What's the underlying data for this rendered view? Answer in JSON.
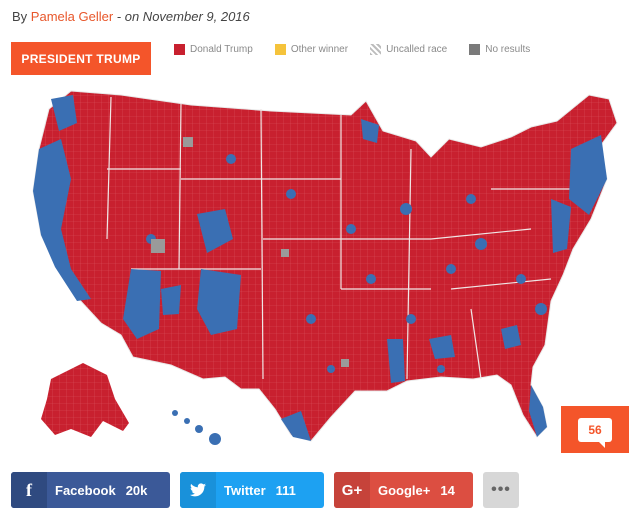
{
  "byline": {
    "prefix": "By ",
    "author": "Pamela Geller",
    "separator": " - ",
    "date": "on November 9, 2016"
  },
  "map": {
    "tag": "PRESIDENT TRUMP",
    "legend": [
      {
        "label": "Donald Trump",
        "color": "#c8202f"
      },
      {
        "label": "Other winner",
        "color": "#f5c33b"
      },
      {
        "label": "Uncalled race",
        "color": "#bdbdbd"
      },
      {
        "label": "No results",
        "color": "#7a7a7a"
      }
    ],
    "colors": {
      "trump": "#c8202f",
      "clinton": "#3a6fb3",
      "none": "#9a9a9a"
    }
  },
  "comments": {
    "count": "56"
  },
  "share": {
    "facebook": {
      "icon": "facebook-icon",
      "label": "Facebook",
      "count": "20k"
    },
    "twitter": {
      "icon": "twitter-bird-icon",
      "label": "Twitter",
      "count": "111"
    },
    "googleplus": {
      "icon": "google-plus-icon",
      "label": "Google+",
      "count": "14"
    },
    "more": {
      "icon": "more-dots-icon",
      "label": "•••"
    }
  }
}
